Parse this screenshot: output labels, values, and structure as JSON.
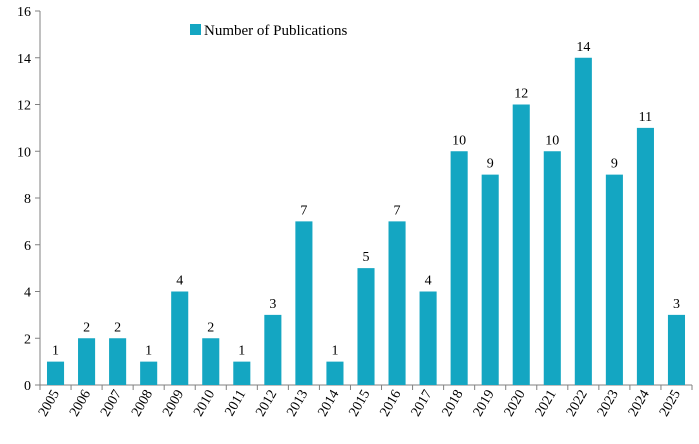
{
  "chart_data": {
    "type": "bar",
    "title": "",
    "xlabel": "",
    "ylabel": "",
    "categories": [
      "2005",
      "2006",
      "2007",
      "2008",
      "2009",
      "2010",
      "2011",
      "2012",
      "2013",
      "2014",
      "2015",
      "2016",
      "2017",
      "2018",
      "2019",
      "2020",
      "2021",
      "2022",
      "2023",
      "2024",
      "2025"
    ],
    "series": [
      {
        "name": "Number of Publications",
        "color": "#14A6C2",
        "values": [
          1,
          2,
          2,
          1,
          4,
          2,
          1,
          3,
          7,
          1,
          5,
          7,
          4,
          10,
          9,
          12,
          10,
          14,
          9,
          11,
          3
        ]
      }
    ],
    "ylim": [
      0,
      16
    ],
    "yticks": [
      0,
      2,
      4,
      6,
      8,
      10,
      12,
      14,
      16
    ],
    "grid": false,
    "legend_position": "top-left",
    "data_labels": true
  }
}
